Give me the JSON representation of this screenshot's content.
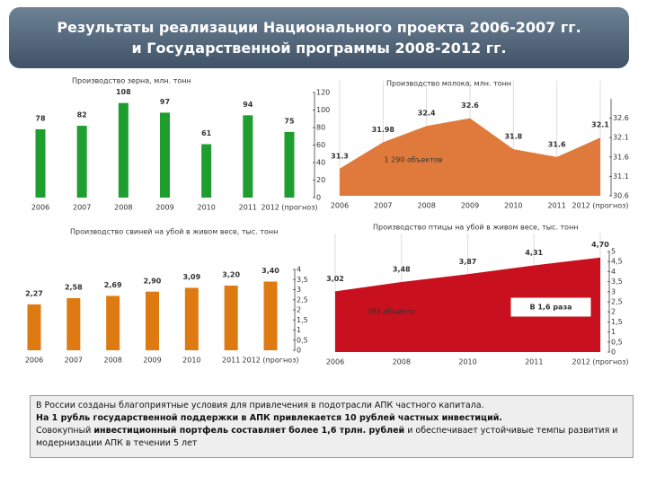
{
  "header": {
    "title_lines": [
      "Результаты реализации Национального проекта 2006-2007 гг.",
      "и Государственной программы 2008-2012 гг."
    ]
  },
  "chart_data": [
    {
      "type": "bar",
      "title": "Производство зерна, млн. тонн",
      "categories": [
        "2006",
        "2007",
        "2008",
        "2009",
        "2010",
        "2011",
        "2012 (прогноз)"
      ],
      "values": [
        78,
        82,
        108,
        97,
        61,
        94,
        75
      ],
      "color": "#1e9e2e",
      "ylim": [
        0,
        120
      ],
      "yticks": [
        0,
        20,
        40,
        60,
        80,
        100,
        120
      ]
    },
    {
      "type": "area",
      "title": "Производство молока, млн. тонн",
      "categories": [
        "2006",
        "2007",
        "2008",
        "2009",
        "2010",
        "2011",
        "2012 (прогноз)"
      ],
      "values": [
        31.3,
        31.98,
        32.4,
        32.6,
        31.8,
        31.6,
        32.1
      ],
      "color": "#e07a3c",
      "label_color": "#d4941a",
      "ylim": [
        30.6,
        33.1
      ],
      "yticks": [
        30.6,
        31.1,
        31.6,
        32.1,
        32.6
      ],
      "annotations": [
        "1 290 объектов"
      ]
    },
    {
      "type": "bar",
      "title": "Производство свиней на убой в живом весе, тыс. тонн",
      "categories": [
        "2006",
        "2007",
        "2008",
        "2009",
        "2010",
        "2011",
        "2012 (прогноз)"
      ],
      "values": [
        2.27,
        2.58,
        2.69,
        2.9,
        3.09,
        3.2,
        3.4
      ],
      "value_labels": [
        "2,27",
        "2,58",
        "2,69",
        "2,90",
        "3,09",
        "3,20",
        "3,40"
      ],
      "color": "#de7a12",
      "label_color": "#d4941a",
      "ylim": [
        0,
        4
      ],
      "yticks": [
        0,
        {
          "value": 0.5,
          "label": "0,5"
        },
        1,
        {
          "value": 1.5,
          "label": "1,5"
        },
        2,
        {
          "value": 2.5,
          "label": "2,5"
        },
        3,
        {
          "value": 3.5,
          "label": "3,5"
        },
        4
      ]
    },
    {
      "type": "area",
      "title": "Производство птицы на убой в живом весе, тыс. тонн",
      "categories": [
        "2006",
        "2008",
        "2010",
        "2011",
        "2012 (прогноз)"
      ],
      "values": [
        3.02,
        3.48,
        3.87,
        4.31,
        4.7
      ],
      "value_labels": [
        "3,02",
        "3,48",
        "3,87",
        "4,31",
        "4,70"
      ],
      "color": "#c8101e",
      "label_color": "#d4941a",
      "ylim": [
        0,
        5
      ],
      "yticks": [
        0,
        {
          "value": 0.5,
          "label": "0,5"
        },
        1,
        {
          "value": 1.5,
          "label": "1,5"
        },
        2,
        {
          "value": 2.5,
          "label": "2,5"
        },
        3,
        {
          "value": 3.5,
          "label": "3,5"
        },
        4,
        {
          "value": 4.5,
          "label": "4,5"
        },
        5
      ],
      "annotations": [
        "284 объекта",
        "В 1,6 раза"
      ]
    }
  ],
  "footer": {
    "line1": "В России созданы благоприятные условия для привлечения в подотрасли АПК частного капитала.",
    "line2": "На 1 рубль государственной поддержки в АПК привлекается 10 рублей частных инвестиций.",
    "line3a": "Совокупный ",
    "line3b": "инвестиционный портфель составляет более 1,6 трлн. рублей",
    "line3c": " и обеспечивает устойчивые темпы развития и модернизации АПК в течении 5 лет"
  }
}
